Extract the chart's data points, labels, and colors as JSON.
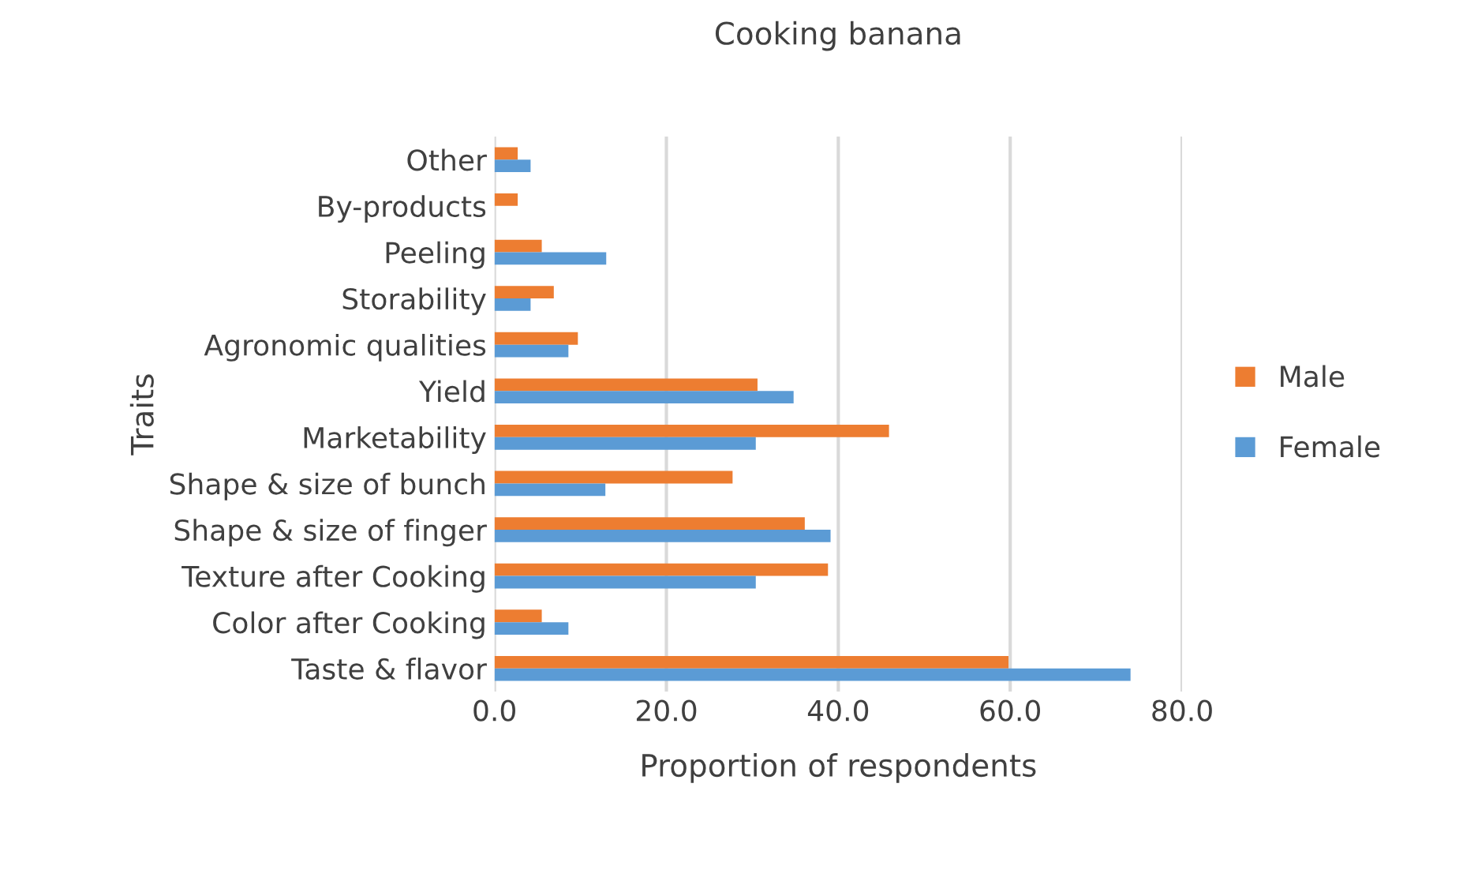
{
  "chart_data": {
    "type": "bar",
    "orientation": "horizontal",
    "title": "Cooking banana",
    "xlabel": "Proportion of respondents",
    "ylabel": "Traits",
    "categories": [
      "Other",
      "By-products",
      "Peeling",
      "Storability",
      "Agronomic qualities",
      "Yield",
      "Marketability",
      "Shape & size of bunch",
      "Shape & size of finger",
      "Texture after Cooking",
      "Color after Cooking",
      "Taste & flavor"
    ],
    "series": [
      {
        "name": "Male",
        "color": "#ed7d31",
        "values": [
          2.7,
          2.7,
          5.5,
          6.9,
          9.7,
          30.6,
          45.9,
          27.7,
          36.1,
          38.8,
          5.5,
          59.8
        ]
      },
      {
        "name": "Female",
        "color": "#5b9bd5",
        "values": [
          4.2,
          null,
          13.0,
          4.2,
          8.6,
          34.8,
          30.4,
          12.9,
          39.1,
          30.4,
          8.6,
          74.0
        ]
      }
    ],
    "xlim": [
      0,
      80
    ],
    "xticks": [
      {
        "value": 0,
        "label": "0.0"
      },
      {
        "value": 20,
        "label": "20.0"
      },
      {
        "value": 40,
        "label": "40.0"
      },
      {
        "value": 60,
        "label": "60.0"
      },
      {
        "value": 80,
        "label": "80.0"
      }
    ],
    "grid": "x",
    "legend": "right"
  }
}
